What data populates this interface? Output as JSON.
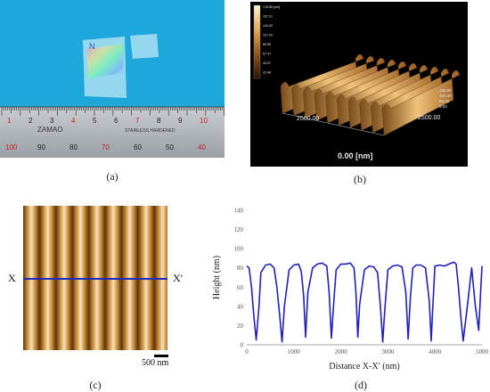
{
  "captions": {
    "a": "(a)",
    "b": "(b)",
    "c": "(c)",
    "d": "(d)"
  },
  "panel_a": {
    "sample_mark": "N",
    "ruler_numbers_top": [
      "1",
      "2",
      "3",
      "4",
      "5",
      "6",
      "7",
      "8",
      "9",
      "10"
    ],
    "ruler_numbers_bottom": [
      "100",
      "90",
      "80",
      "70",
      "60",
      "50",
      "40"
    ],
    "ruler_brand": "ZAMAO",
    "ruler_text": "STAINLESS HARDENED"
  },
  "panel_b": {
    "colorbar_labels": [
      "178.65 [nm]",
      "157.21",
      "134.92",
      "112.43",
      "89.95",
      "67.47",
      "44.97",
      "22.48"
    ],
    "axis_x_label": "2500.00",
    "axis_y_label": "2500.00",
    "z_ticks": [
      "150.00",
      "100.00",
      "50.00",
      "0.00"
    ],
    "bottom_label": "0.00 [nm]",
    "colors": {
      "ridge_light": "#e7b36a",
      "ridge_dark": "#7a4b1a"
    }
  },
  "panel_c": {
    "left_label": "X",
    "right_label": "X′",
    "scale_bar_label": "500 nm",
    "line_color": "#1f2bbf"
  },
  "chart_data": {
    "type": "line",
    "title": "",
    "xlabel": "Distance X-X′ (nm)",
    "ylabel": "Height (nm)",
    "xlim": [
      0,
      5000
    ],
    "ylim": [
      0,
      140
    ],
    "xticks": [
      0,
      1000,
      2000,
      3000,
      4000,
      5000
    ],
    "yticks": [
      0,
      20,
      40,
      60,
      80,
      100,
      120,
      140
    ],
    "grid": false,
    "legend": "none",
    "color": "#1f1fc8",
    "series": [
      {
        "x": [
          0,
          50,
          100,
          150,
          200,
          260,
          300,
          400,
          500,
          580,
          640,
          700,
          750,
          800,
          900,
          1000,
          1100,
          1160,
          1210,
          1250,
          1300,
          1400,
          1500,
          1600,
          1700,
          1750,
          1800,
          1850,
          1900,
          2000,
          2100,
          2200,
          2280,
          2320,
          2360,
          2400,
          2500,
          2600,
          2700,
          2780,
          2840,
          2890,
          2940,
          3000,
          3100,
          3200,
          3300,
          3380,
          3430,
          3480,
          3530,
          3600,
          3700,
          3800,
          3880,
          3920,
          3960,
          4000,
          4100,
          4200,
          4300,
          4400,
          4450,
          4500,
          4550,
          4600,
          4700,
          4780,
          4860,
          4930,
          5000
        ],
        "y": [
          82,
          80,
          60,
          30,
          5,
          40,
          75,
          83,
          84,
          80,
          60,
          30,
          3,
          40,
          78,
          83,
          84,
          76,
          50,
          8,
          55,
          80,
          84,
          85,
          82,
          55,
          7,
          45,
          78,
          84,
          84,
          85,
          80,
          55,
          8,
          42,
          78,
          82,
          81,
          75,
          40,
          3,
          40,
          78,
          82,
          83,
          81,
          55,
          6,
          50,
          80,
          83,
          83,
          80,
          45,
          4,
          45,
          82,
          83,
          82,
          84,
          86,
          84,
          60,
          30,
          4,
          45,
          80,
          40,
          15,
          82
        ]
      }
    ]
  }
}
